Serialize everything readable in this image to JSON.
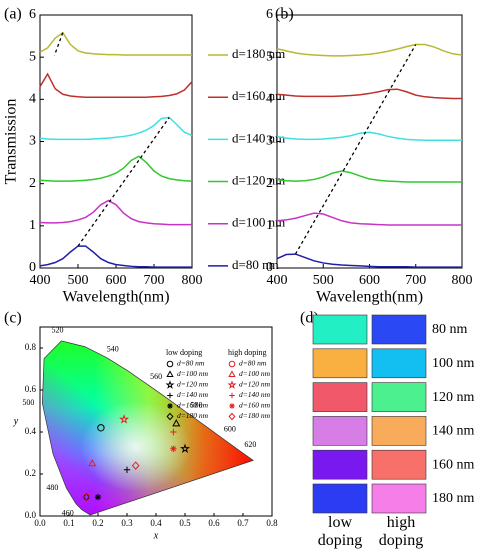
{
  "chart_data": [
    {
      "type": "line",
      "panel": "(a)",
      "xlabel": "Wavelength(nm)",
      "ylabel": "Transmission",
      "xlim": [
        400,
        800
      ],
      "ylim": [
        0,
        6
      ],
      "xticks": [
        400,
        500,
        600,
        700,
        800
      ],
      "yticks": [
        0,
        1,
        2,
        3,
        4,
        5,
        6
      ],
      "x": [
        400,
        420,
        440,
        460,
        480,
        500,
        520,
        540,
        560,
        580,
        600,
        620,
        640,
        660,
        680,
        700,
        720,
        740,
        760,
        780,
        800
      ],
      "series": [
        {
          "name": "d=80 nm",
          "color": "#1f1fa8",
          "values": [
            0.05,
            0.08,
            0.13,
            0.22,
            0.38,
            0.52,
            0.52,
            0.38,
            0.22,
            0.13,
            0.08,
            0.06,
            0.04,
            0.03,
            0.03,
            0.02,
            0.02,
            0.02,
            0.02,
            0.02,
            0.02
          ]
        },
        {
          "name": "d=100 nm",
          "color": "#c832c8",
          "values": [
            1.08,
            1.07,
            1.07,
            1.08,
            1.1,
            1.14,
            1.2,
            1.32,
            1.5,
            1.6,
            1.5,
            1.3,
            1.17,
            1.1,
            1.07,
            1.05,
            1.04,
            1.03,
            1.03,
            1.03,
            1.03
          ]
        },
        {
          "name": "d=120 nm",
          "color": "#2fc82f",
          "values": [
            2.08,
            2.07,
            2.06,
            2.06,
            2.06,
            2.07,
            2.08,
            2.1,
            2.13,
            2.18,
            2.25,
            2.37,
            2.55,
            2.65,
            2.5,
            2.3,
            2.18,
            2.12,
            2.09,
            2.07,
            2.06
          ]
        },
        {
          "name": "d=140 nm",
          "color": "#3ee0e0",
          "values": [
            3.08,
            3.06,
            3.05,
            3.05,
            3.05,
            3.05,
            3.05,
            3.06,
            3.07,
            3.08,
            3.1,
            3.12,
            3.15,
            3.2,
            3.27,
            3.38,
            3.55,
            3.57,
            3.4,
            3.22,
            3.14
          ]
        },
        {
          "name": "d=160 nm",
          "color": "#c0302a",
          "values": [
            4.3,
            4.6,
            4.25,
            4.12,
            4.08,
            4.06,
            4.05,
            4.05,
            4.05,
            4.05,
            4.05,
            4.05,
            4.05,
            4.05,
            4.05,
            4.06,
            4.07,
            4.09,
            4.13,
            4.22,
            4.42
          ]
        },
        {
          "name": "d=180 nm",
          "color": "#b8b832",
          "values": [
            5.12,
            5.22,
            5.45,
            5.58,
            5.3,
            5.15,
            5.1,
            5.08,
            5.07,
            5.06,
            5.06,
            5.05,
            5.05,
            5.05,
            5.05,
            5.05,
            5.05,
            5.05,
            5.05,
            5.05,
            5.05
          ]
        }
      ]
    },
    {
      "type": "line",
      "panel": "(b)",
      "xlabel": "Wavelength(nm)",
      "xlim": [
        400,
        800
      ],
      "ylim": [
        0,
        6
      ],
      "xticks": [
        400,
        500,
        600,
        700,
        800
      ],
      "yticks": [
        0,
        1,
        2,
        3,
        4,
        5,
        6
      ],
      "x": [
        400,
        420,
        440,
        460,
        480,
        500,
        520,
        540,
        560,
        580,
        600,
        620,
        640,
        660,
        680,
        700,
        720,
        740,
        760,
        780,
        800
      ],
      "series": [
        {
          "color": "#1f1fa8",
          "values": [
            0.22,
            0.32,
            0.33,
            0.25,
            0.17,
            0.12,
            0.09,
            0.07,
            0.06,
            0.05,
            0.04,
            0.03,
            0.03,
            0.03,
            0.03,
            0.02,
            0.02,
            0.02,
            0.02,
            0.02,
            0.02
          ]
        },
        {
          "color": "#c832c8",
          "values": [
            1.12,
            1.14,
            1.18,
            1.24,
            1.3,
            1.28,
            1.2,
            1.12,
            1.07,
            1.05,
            1.04,
            1.03,
            1.02,
            1.02,
            1.02,
            1.02,
            1.02,
            1.02,
            1.02,
            1.02,
            1.02
          ]
        },
        {
          "color": "#2fc82f",
          "values": [
            2.1,
            2.07,
            2.06,
            2.07,
            2.1,
            2.16,
            2.25,
            2.3,
            2.26,
            2.18,
            2.11,
            2.08,
            2.06,
            2.05,
            2.04,
            2.04,
            2.04,
            2.04,
            2.04,
            2.04,
            2.04
          ]
        },
        {
          "color": "#3ee0e0",
          "values": [
            3.12,
            3.08,
            3.06,
            3.05,
            3.05,
            3.06,
            3.08,
            3.1,
            3.14,
            3.2,
            3.22,
            3.18,
            3.12,
            3.08,
            3.05,
            3.04,
            3.03,
            3.03,
            3.03,
            3.03,
            3.03
          ]
        },
        {
          "color": "#c0302a",
          "values": [
            4.12,
            4.1,
            4.08,
            4.07,
            4.07,
            4.07,
            4.07,
            4.08,
            4.09,
            4.11,
            4.14,
            4.18,
            4.23,
            4.24,
            4.18,
            4.1,
            4.06,
            4.04,
            4.03,
            4.02,
            4.02
          ]
        },
        {
          "color": "#b8b832",
          "values": [
            5.2,
            5.15,
            5.1,
            5.07,
            5.05,
            5.04,
            5.03,
            5.03,
            5.04,
            5.05,
            5.07,
            5.1,
            5.14,
            5.19,
            5.25,
            5.3,
            5.3,
            5.24,
            5.15,
            5.08,
            5.05
          ]
        }
      ]
    },
    {
      "type": "scatter",
      "panel": "(c)",
      "xlabel": "x",
      "ylabel": "y",
      "xlim": [
        0,
        0.8
      ],
      "ylim": [
        0,
        0.9
      ],
      "xticks": [
        {
          "value": 0,
          "label": "0.0"
        },
        0.1,
        0.2,
        0.3,
        0.4,
        0.5,
        0.6,
        0.7,
        0.8
      ],
      "yticks": [
        {
          "value": 0,
          "label": "0.0"
        },
        0.2,
        0.4,
        0.6,
        0.8
      ],
      "wavelength_labels": [
        460,
        480,
        500,
        520,
        540,
        560,
        580,
        600,
        620
      ],
      "markers": [
        "circle",
        "triangle",
        "star",
        "plus",
        "asterisk",
        "diamond"
      ],
      "series": [
        {
          "name": "low doping",
          "color": "#000000",
          "labels": [
            "d=80 nm",
            "d=100 nm",
            "d=120 nm",
            "d=140 nm",
            "d=160 nm",
            "d=180 nm"
          ],
          "x": [
            0.21,
            0.47,
            0.5,
            0.3,
            0.2,
            0.16
          ],
          "values": [
            0.42,
            0.44,
            0.32,
            0.22,
            0.09,
            0.09
          ]
        },
        {
          "name": "high doping",
          "color": "#e02020",
          "labels": [
            "d=80 nm",
            "d=100 nm",
            "d=120 nm",
            "d=140 nm",
            "d=160 nm",
            "d=180 nm"
          ],
          "x": [
            0.16,
            0.18,
            0.29,
            0.46,
            0.46,
            0.33
          ],
          "values": [
            0.09,
            0.25,
            0.46,
            0.4,
            0.32,
            0.24
          ]
        }
      ]
    }
  ],
  "swatch_table": {
    "panel": "(d)",
    "columns": [
      "low doping",
      "high doping"
    ],
    "rows": [
      {
        "label": "80 nm",
        "low": "#22f0c4",
        "high": "#2a49f5"
      },
      {
        "label": "100 nm",
        "low": "#f9b040",
        "high": "#12bff0"
      },
      {
        "label": "120 nm",
        "low": "#f1586a",
        "high": "#4cf08f"
      },
      {
        "label": "140 nm",
        "low": "#d77ee6",
        "high": "#f9ab5c"
      },
      {
        "label": "160 nm",
        "low": "#7a18f0",
        "high": "#f7706a"
      },
      {
        "label": "180 nm",
        "low": "#2c3cf3",
        "high": "#f67ee8"
      }
    ]
  }
}
